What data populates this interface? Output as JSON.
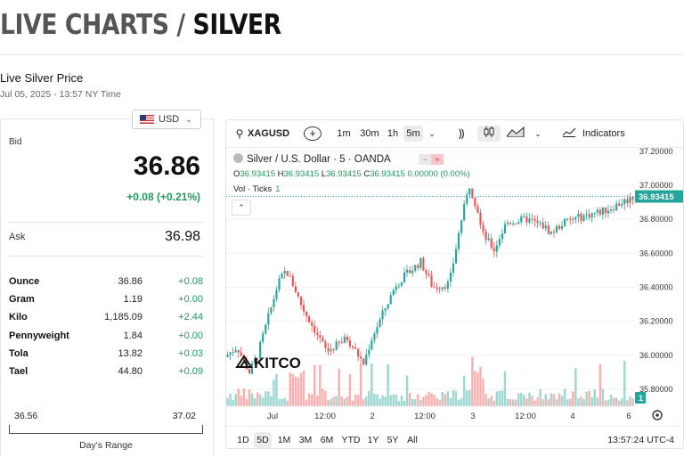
{
  "header": {
    "title_part1": "LIVE CHARTS / ",
    "title_part2": "SILVER"
  },
  "price_section": {
    "label": "Live Silver Price",
    "timestamp": "Jul 05, 2025 - 13:57 NY Time"
  },
  "currency_selector": {
    "value": "USD"
  },
  "bid": {
    "label": "Bid",
    "value": "36.86",
    "change": "+0.08 (+0.21%)"
  },
  "ask": {
    "label": "Ask",
    "value": "36.98"
  },
  "units": [
    {
      "name": "Ounce",
      "price": "36.86",
      "change": "+0.08"
    },
    {
      "name": "Gram",
      "price": "1.19",
      "change": "+0.00"
    },
    {
      "name": "Kilo",
      "price": "1,185.09",
      "change": "+2.44"
    },
    {
      "name": "Pennyweight",
      "price": "1.84",
      "change": "+0.00"
    },
    {
      "name": "Tola",
      "price": "13.82",
      "change": "+0.03"
    },
    {
      "name": "Tael",
      "price": "44.80",
      "change": "+0.09"
    }
  ],
  "days_range": {
    "low": "36.56",
    "high": "37.02",
    "label": "Day's Range"
  },
  "chart_toolbar": {
    "symbol": "XAGUSD",
    "intervals": [
      "1m",
      "30m",
      "1h",
      "5m"
    ],
    "selected_interval": "5m",
    "indicators_label": "Indicators"
  },
  "chart_legend": {
    "title": "Silver / U.S. Dollar · 5 · OANDA",
    "ohlc": {
      "o": "36.93415",
      "h": "36.93415",
      "l": "36.93415",
      "c": "36.93415",
      "change": "0.00000 (0.00%)"
    },
    "volume_label": "Vol · Ticks",
    "volume_value": "1"
  },
  "range_buttons": [
    "1D",
    "5D",
    "1M",
    "3M",
    "6M",
    "YTD",
    "1Y",
    "5Y",
    "All"
  ],
  "selected_range": "5D",
  "clock": "13:57:24 UTC-4",
  "watermark": "KITCO",
  "colors": {
    "up": "#26a69a",
    "down": "#ef5350",
    "green_text": "#1f9a5e",
    "price_tag": "#26a69a"
  },
  "chart_data": {
    "type": "candlestick",
    "title": "Silver / U.S. Dollar · 5 · OANDA",
    "y_ticks": [
      "37.20000",
      "37.00000",
      "36.80000",
      "36.60000",
      "36.40000",
      "36.20000",
      "36.00000",
      "35.80000"
    ],
    "ylim": [
      35.7,
      37.22
    ],
    "x_ticks": [
      "Jul",
      "12:00",
      "2",
      "12:00",
      "3",
      "12:00",
      "4",
      "6"
    ],
    "last_price": "36.93415",
    "volume_last": "1",
    "price_path": [
      {
        "x": 0,
        "y": 35.99
      },
      {
        "x": 0.03,
        "y": 36.05
      },
      {
        "x": 0.06,
        "y": 35.9
      },
      {
        "x": 0.08,
        "y": 36.0
      },
      {
        "x": 0.13,
        "y": 36.42
      },
      {
        "x": 0.15,
        "y": 36.5
      },
      {
        "x": 0.17,
        "y": 36.4
      },
      {
        "x": 0.19,
        "y": 36.28
      },
      {
        "x": 0.22,
        "y": 36.15
      },
      {
        "x": 0.25,
        "y": 36.02
      },
      {
        "x": 0.3,
        "y": 36.1
      },
      {
        "x": 0.34,
        "y": 35.95
      },
      {
        "x": 0.36,
        "y": 36.1
      },
      {
        "x": 0.42,
        "y": 36.42
      },
      {
        "x": 0.48,
        "y": 36.55
      },
      {
        "x": 0.51,
        "y": 36.4
      },
      {
        "x": 0.55,
        "y": 36.42
      },
      {
        "x": 0.58,
        "y": 36.8
      },
      {
        "x": 0.6,
        "y": 37.0
      },
      {
        "x": 0.62,
        "y": 36.85
      },
      {
        "x": 0.63,
        "y": 36.72
      },
      {
        "x": 0.66,
        "y": 36.62
      },
      {
        "x": 0.69,
        "y": 36.78
      },
      {
        "x": 0.74,
        "y": 36.8
      },
      {
        "x": 0.78,
        "y": 36.76
      },
      {
        "x": 0.8,
        "y": 36.72
      },
      {
        "x": 0.83,
        "y": 36.78
      },
      {
        "x": 0.88,
        "y": 36.82
      },
      {
        "x": 0.93,
        "y": 36.85
      },
      {
        "x": 1.0,
        "y": 36.93
      }
    ]
  }
}
